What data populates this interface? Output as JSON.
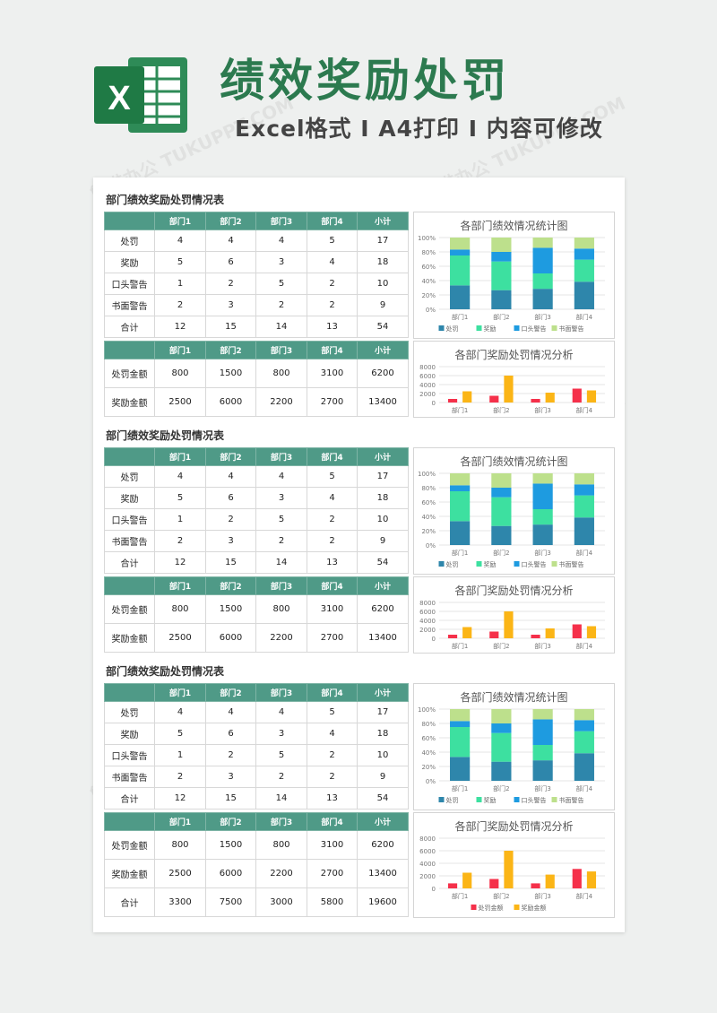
{
  "header": {
    "title": "绩效奖励处罚",
    "subtitle": "Excel格式 I A4打印 I 内容可修改",
    "logo_letter": "X"
  },
  "watermark": "熊猫办公 TUKUPPT.COM",
  "sections": [
    {
      "title": "部门绩效奖励处罚情况表",
      "table1": {
        "headers": [
          "",
          "部门1",
          "部门2",
          "部门3",
          "部门4",
          "小计"
        ],
        "rows": [
          [
            "处罚",
            "4",
            "4",
            "4",
            "5",
            "17"
          ],
          [
            "奖励",
            "5",
            "6",
            "3",
            "4",
            "18"
          ],
          [
            "口头警告",
            "1",
            "2",
            "5",
            "2",
            "10"
          ],
          [
            "书面警告",
            "2",
            "3",
            "2",
            "2",
            "9"
          ],
          [
            "合计",
            "12",
            "15",
            "14",
            "13",
            "54"
          ]
        ]
      },
      "table2": {
        "headers": [
          "",
          "部门1",
          "部门2",
          "部门3",
          "部门4",
          "小计"
        ],
        "rows": [
          [
            "处罚金额",
            "800",
            "1500",
            "800",
            "3100",
            "6200"
          ],
          [
            "奖励金额",
            "2500",
            "6000",
            "2200",
            "2700",
            "13400"
          ]
        ]
      }
    },
    {
      "title": "部门绩效奖励处罚情况表",
      "table1": {
        "headers": [
          "",
          "部门1",
          "部门2",
          "部门3",
          "部门4",
          "小计"
        ],
        "rows": [
          [
            "处罚",
            "4",
            "4",
            "4",
            "5",
            "17"
          ],
          [
            "奖励",
            "5",
            "6",
            "3",
            "4",
            "18"
          ],
          [
            "口头警告",
            "1",
            "2",
            "5",
            "2",
            "10"
          ],
          [
            "书面警告",
            "2",
            "3",
            "2",
            "2",
            "9"
          ],
          [
            "合计",
            "12",
            "15",
            "14",
            "13",
            "54"
          ]
        ]
      },
      "table2": {
        "headers": [
          "",
          "部门1",
          "部门2",
          "部门3",
          "部门4",
          "小计"
        ],
        "rows": [
          [
            "处罚金额",
            "800",
            "1500",
            "800",
            "3100",
            "6200"
          ],
          [
            "奖励金额",
            "2500",
            "6000",
            "2200",
            "2700",
            "13400"
          ]
        ]
      }
    },
    {
      "title": "部门绩效奖励处罚情况表",
      "table1": {
        "headers": [
          "",
          "部门1",
          "部门2",
          "部门3",
          "部门4",
          "小计"
        ],
        "rows": [
          [
            "处罚",
            "4",
            "4",
            "4",
            "5",
            "17"
          ],
          [
            "奖励",
            "5",
            "6",
            "3",
            "4",
            "18"
          ],
          [
            "口头警告",
            "1",
            "2",
            "5",
            "2",
            "10"
          ],
          [
            "书面警告",
            "2",
            "3",
            "2",
            "2",
            "9"
          ],
          [
            "合计",
            "12",
            "15",
            "14",
            "13",
            "54"
          ]
        ]
      },
      "table2": {
        "headers": [
          "",
          "部门1",
          "部门2",
          "部门3",
          "部门4",
          "小计"
        ],
        "rows": [
          [
            "处罚金额",
            "800",
            "1500",
            "800",
            "3100",
            "6200"
          ],
          [
            "奖励金额",
            "2500",
            "6000",
            "2200",
            "2700",
            "13400"
          ],
          [
            "合计",
            "3300",
            "7500",
            "3000",
            "5800",
            "19600"
          ]
        ]
      }
    }
  ],
  "colors": {
    "header_green": "#4f9a87",
    "title_green": "#2c7a4f",
    "处罚": "#2e86ab",
    "奖励": "#3de0a0",
    "口头警告": "#1e9be0",
    "书面警告": "#bde08c",
    "处罚金额": "#f5304a",
    "奖励金额": "#fbb516"
  },
  "chart_data": [
    {
      "type": "bar",
      "stacked": "percent",
      "title": "各部门绩效情况统计图",
      "categories": [
        "部门1",
        "部门2",
        "部门3",
        "部门4"
      ],
      "yticks": [
        "0%",
        "20%",
        "40%",
        "60%",
        "80%",
        "100%"
      ],
      "series": [
        {
          "name": "处罚",
          "values": [
            4,
            4,
            4,
            5
          ]
        },
        {
          "name": "奖励",
          "values": [
            5,
            6,
            3,
            4
          ]
        },
        {
          "name": "口头警告",
          "values": [
            1,
            2,
            5,
            2
          ]
        },
        {
          "name": "书面警告",
          "values": [
            2,
            3,
            2,
            2
          ]
        }
      ],
      "legend": "bottom",
      "legend_shown": true
    },
    {
      "type": "bar",
      "title": "各部门奖励处罚情况分析",
      "categories": [
        "部门1",
        "部门2",
        "部门3",
        "部门4"
      ],
      "yticks": [
        "0",
        "2000",
        "4000",
        "6000",
        "8000"
      ],
      "ylim": [
        0,
        8000
      ],
      "series": [
        {
          "name": "处罚金额",
          "values": [
            800,
            1500,
            800,
            3100
          ]
        },
        {
          "name": "奖励金额",
          "values": [
            2500,
            6000,
            2200,
            2700
          ]
        }
      ],
      "legend_shown": false
    },
    {
      "type": "bar",
      "stacked": "percent",
      "title": "各部门绩效情况统计图",
      "categories": [
        "部门1",
        "部门2",
        "部门3",
        "部门4"
      ],
      "yticks": [
        "0%",
        "20%",
        "40%",
        "60%",
        "80%",
        "100%"
      ],
      "series": [
        {
          "name": "处罚",
          "values": [
            4,
            4,
            4,
            5
          ]
        },
        {
          "name": "奖励",
          "values": [
            5,
            6,
            3,
            4
          ]
        },
        {
          "name": "口头警告",
          "values": [
            1,
            2,
            5,
            2
          ]
        },
        {
          "name": "书面警告",
          "values": [
            2,
            3,
            2,
            2
          ]
        }
      ],
      "legend": "bottom",
      "legend_shown": true
    },
    {
      "type": "bar",
      "title": "各部门奖励处罚情况分析",
      "categories": [
        "部门1",
        "部门2",
        "部门3",
        "部门4"
      ],
      "yticks": [
        "0",
        "2000",
        "4000",
        "6000",
        "8000"
      ],
      "ylim": [
        0,
        8000
      ],
      "series": [
        {
          "name": "处罚金额",
          "values": [
            800,
            1500,
            800,
            3100
          ]
        },
        {
          "name": "奖励金额",
          "values": [
            2500,
            6000,
            2200,
            2700
          ]
        }
      ],
      "legend_shown": false
    },
    {
      "type": "bar",
      "stacked": "percent",
      "title": "各部门绩效情况统计图",
      "categories": [
        "部门1",
        "部门2",
        "部门3",
        "部门4"
      ],
      "yticks": [
        "0%",
        "20%",
        "40%",
        "60%",
        "80%",
        "100%"
      ],
      "series": [
        {
          "name": "处罚",
          "values": [
            4,
            4,
            4,
            5
          ]
        },
        {
          "name": "奖励",
          "values": [
            5,
            6,
            3,
            4
          ]
        },
        {
          "name": "口头警告",
          "values": [
            1,
            2,
            5,
            2
          ]
        },
        {
          "name": "书面警告",
          "values": [
            2,
            3,
            2,
            2
          ]
        }
      ],
      "legend": "bottom",
      "legend_shown": true
    },
    {
      "type": "bar",
      "title": "各部门奖励处罚情况分析",
      "categories": [
        "部门1",
        "部门2",
        "部门3",
        "部门4"
      ],
      "yticks": [
        "0",
        "2000",
        "4000",
        "6000",
        "8000"
      ],
      "ylim": [
        0,
        8000
      ],
      "series": [
        {
          "name": "处罚金额",
          "values": [
            800,
            1500,
            800,
            3100
          ]
        },
        {
          "name": "奖励金额",
          "values": [
            2500,
            6000,
            2200,
            2700
          ]
        }
      ],
      "legend": "bottom",
      "legend_shown": true
    }
  ]
}
